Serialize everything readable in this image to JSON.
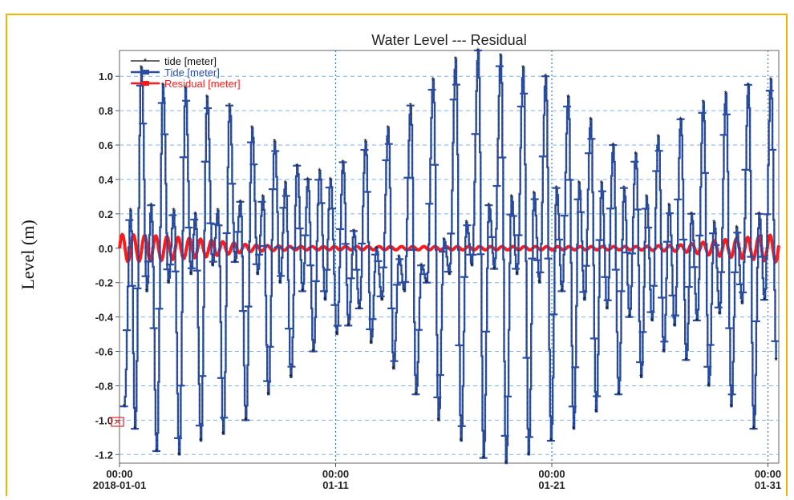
{
  "frame_color": "#f5b300",
  "chart_data": {
    "type": "line",
    "title": "Water Level --- Residual",
    "ylabel": "Level (m)",
    "xlabel": "",
    "ylim": [
      -1.25,
      1.15
    ],
    "y_ticks": [
      1.0,
      0.8,
      0.6,
      0.4,
      0.2,
      0.0,
      -0.2,
      -0.4,
      -0.6,
      -0.8,
      -1.0,
      -1.2
    ],
    "y_tick_labels": [
      "1.0",
      "0.8",
      "0.6",
      "0.4",
      "0.2",
      "0.0",
      "-0.2",
      "-0.4",
      "-0.6",
      "-0.8",
      "-1.0",
      "-1.2"
    ],
    "xlim": [
      "2018-01-01T00:00",
      "2018-01-31T12:00"
    ],
    "x_ticks": [
      {
        "date": "2018-01-01T00:00",
        "line1": "00:00",
        "line2": "2018-01-01"
      },
      {
        "date": "2018-01-11T00:00",
        "line1": "00:00",
        "line2": "01-11"
      },
      {
        "date": "2018-01-21T00:00",
        "line1": "00:00",
        "line2": "01-21"
      },
      {
        "date": "2018-01-31T00:00",
        "line1": "00:00",
        "line2": "01-31"
      }
    ],
    "grid": true,
    "legend_position": "top-left",
    "series": [
      {
        "name": "tide [meter]",
        "color": "#111111",
        "marker": "asterisk"
      },
      {
        "name": "Tide [meter]",
        "color": "#2b4ea3",
        "marker": "dash"
      },
      {
        "name": "Residual [meter]",
        "color": "#ff1a1a",
        "marker": "dash"
      }
    ],
    "tide_extremes": [
      {
        "date": "2018-01-01T05:00",
        "value": -0.92
      },
      {
        "date": "2018-01-01T12:00",
        "value": 0.22
      },
      {
        "date": "2018-01-01T17:00",
        "value": -1.05
      },
      {
        "date": "2018-01-02T00:00",
        "value": 1.05
      },
      {
        "date": "2018-01-02T06:00",
        "value": -0.25
      },
      {
        "date": "2018-01-02T11:00",
        "value": 0.25
      },
      {
        "date": "2018-01-02T17:00",
        "value": -1.18
      },
      {
        "date": "2018-01-03T00:00",
        "value": 0.95
      },
      {
        "date": "2018-01-03T06:00",
        "value": -0.2
      },
      {
        "date": "2018-01-03T12:00",
        "value": 0.22
      },
      {
        "date": "2018-01-03T18:00",
        "value": -1.2
      },
      {
        "date": "2018-01-04T01:00",
        "value": 0.93
      },
      {
        "date": "2018-01-04T07:00",
        "value": -0.15
      },
      {
        "date": "2018-01-04T12:00",
        "value": 0.2
      },
      {
        "date": "2018-01-04T18:00",
        "value": -1.12
      },
      {
        "date": "2018-01-05T01:00",
        "value": 0.88
      },
      {
        "date": "2018-01-05T07:00",
        "value": -0.1
      },
      {
        "date": "2018-01-05T13:00",
        "value": 0.22
      },
      {
        "date": "2018-01-05T19:00",
        "value": -1.08
      },
      {
        "date": "2018-01-06T02:00",
        "value": 0.83
      },
      {
        "date": "2018-01-06T08:00",
        "value": -0.08
      },
      {
        "date": "2018-01-06T14:00",
        "value": 0.27
      },
      {
        "date": "2018-01-06T20:00",
        "value": -1.0
      },
      {
        "date": "2018-01-07T03:00",
        "value": 0.7
      },
      {
        "date": "2018-01-07T09:00",
        "value": -0.15
      },
      {
        "date": "2018-01-07T15:00",
        "value": 0.3
      },
      {
        "date": "2018-01-07T21:00",
        "value": -0.85
      },
      {
        "date": "2018-01-08T04:00",
        "value": 0.62
      },
      {
        "date": "2018-01-08T10:00",
        "value": -0.2
      },
      {
        "date": "2018-01-08T16:00",
        "value": 0.38
      },
      {
        "date": "2018-01-08T22:00",
        "value": -0.75
      },
      {
        "date": "2018-01-09T05:00",
        "value": 0.48
      },
      {
        "date": "2018-01-09T11:00",
        "value": -0.25
      },
      {
        "date": "2018-01-09T17:00",
        "value": 0.4
      },
      {
        "date": "2018-01-09T23:00",
        "value": -0.6
      },
      {
        "date": "2018-01-10T06:00",
        "value": 0.45
      },
      {
        "date": "2018-01-10T12:00",
        "value": -0.3
      },
      {
        "date": "2018-01-10T18:00",
        "value": 0.4
      },
      {
        "date": "2018-01-11T01:00",
        "value": -0.5
      },
      {
        "date": "2018-01-11T08:00",
        "value": 0.5
      },
      {
        "date": "2018-01-11T14:00",
        "value": -0.45
      },
      {
        "date": "2018-01-11T20:00",
        "value": 0.1
      },
      {
        "date": "2018-01-12T02:00",
        "value": -0.35
      },
      {
        "date": "2018-01-12T09:00",
        "value": 0.62
      },
      {
        "date": "2018-01-12T15:00",
        "value": -0.55
      },
      {
        "date": "2018-01-12T21:00",
        "value": 0.0
      },
      {
        "date": "2018-01-13T03:00",
        "value": -0.3
      },
      {
        "date": "2018-01-13T10:00",
        "value": 0.7
      },
      {
        "date": "2018-01-13T16:00",
        "value": -0.7
      },
      {
        "date": "2018-01-13T22:00",
        "value": -0.05
      },
      {
        "date": "2018-01-14T04:00",
        "value": -0.25
      },
      {
        "date": "2018-01-14T11:00",
        "value": 0.83
      },
      {
        "date": "2018-01-14T17:00",
        "value": -0.85
      },
      {
        "date": "2018-01-14T23:00",
        "value": -0.1
      },
      {
        "date": "2018-01-15T05:00",
        "value": -0.2
      },
      {
        "date": "2018-01-15T12:00",
        "value": 0.98
      },
      {
        "date": "2018-01-15T18:00",
        "value": -1.0
      },
      {
        "date": "2018-01-16T00:00",
        "value": 0.05
      },
      {
        "date": "2018-01-16T06:00",
        "value": -0.15
      },
      {
        "date": "2018-01-16T13:00",
        "value": 1.1
      },
      {
        "date": "2018-01-16T19:00",
        "value": -1.12
      },
      {
        "date": "2018-01-17T01:00",
        "value": 0.15
      },
      {
        "date": "2018-01-17T07:00",
        "value": -0.1
      },
      {
        "date": "2018-01-17T14:00",
        "value": 1.15
      },
      {
        "date": "2018-01-17T20:00",
        "value": -1.22
      },
      {
        "date": "2018-01-18T02:00",
        "value": 0.25
      },
      {
        "date": "2018-01-18T08:00",
        "value": -0.12
      },
      {
        "date": "2018-01-18T15:00",
        "value": 1.12
      },
      {
        "date": "2018-01-18T21:00",
        "value": -1.25
      },
      {
        "date": "2018-01-19T03:00",
        "value": 0.3
      },
      {
        "date": "2018-01-19T09:00",
        "value": -0.15
      },
      {
        "date": "2018-01-19T16:00",
        "value": 1.05
      },
      {
        "date": "2018-01-19T22:00",
        "value": -1.2
      },
      {
        "date": "2018-01-20T04:00",
        "value": 0.32
      },
      {
        "date": "2018-01-20T10:00",
        "value": -0.2
      },
      {
        "date": "2018-01-20T17:00",
        "value": 1.0
      },
      {
        "date": "2018-01-20T23:00",
        "value": -1.12
      },
      {
        "date": "2018-01-21T05:00",
        "value": 0.35
      },
      {
        "date": "2018-01-21T11:00",
        "value": -0.25
      },
      {
        "date": "2018-01-21T18:00",
        "value": 0.88
      },
      {
        "date": "2018-01-22T00:00",
        "value": -1.05
      },
      {
        "date": "2018-01-22T06:00",
        "value": 0.38
      },
      {
        "date": "2018-01-22T12:00",
        "value": -0.3
      },
      {
        "date": "2018-01-22T19:00",
        "value": 0.75
      },
      {
        "date": "2018-01-23T01:00",
        "value": -0.95
      },
      {
        "date": "2018-01-23T07:00",
        "value": 0.38
      },
      {
        "date": "2018-01-23T13:00",
        "value": -0.35
      },
      {
        "date": "2018-01-23T20:00",
        "value": 0.6
      },
      {
        "date": "2018-01-24T02:00",
        "value": -0.85
      },
      {
        "date": "2018-01-24T08:00",
        "value": 0.35
      },
      {
        "date": "2018-01-24T14:00",
        "value": -0.4
      },
      {
        "date": "2018-01-24T21:00",
        "value": 0.55
      },
      {
        "date": "2018-01-25T03:00",
        "value": -0.75
      },
      {
        "date": "2018-01-25T09:00",
        "value": 0.3
      },
      {
        "date": "2018-01-25T15:00",
        "value": -0.42
      },
      {
        "date": "2018-01-25T22:00",
        "value": 0.65
      },
      {
        "date": "2018-01-26T04:00",
        "value": -0.6
      },
      {
        "date": "2018-01-26T10:00",
        "value": 0.25
      },
      {
        "date": "2018-01-26T16:00",
        "value": -0.45
      },
      {
        "date": "2018-01-26T23:00",
        "value": 0.75
      },
      {
        "date": "2018-01-27T05:00",
        "value": -0.65
      },
      {
        "date": "2018-01-27T11:00",
        "value": 0.2
      },
      {
        "date": "2018-01-27T17:00",
        "value": -0.42
      },
      {
        "date": "2018-01-28T00:00",
        "value": 0.85
      },
      {
        "date": "2018-01-28T06:00",
        "value": -0.8
      },
      {
        "date": "2018-01-28T12:00",
        "value": 0.15
      },
      {
        "date": "2018-01-28T18:00",
        "value": -0.38
      },
      {
        "date": "2018-01-29T01:00",
        "value": 0.9
      },
      {
        "date": "2018-01-29T07:00",
        "value": -0.92
      },
      {
        "date": "2018-01-29T13:00",
        "value": 0.12
      },
      {
        "date": "2018-01-29T19:00",
        "value": -0.32
      },
      {
        "date": "2018-01-30T02:00",
        "value": 0.95
      },
      {
        "date": "2018-01-30T08:00",
        "value": -1.05
      },
      {
        "date": "2018-01-30T14:00",
        "value": 0.2
      },
      {
        "date": "2018-01-30T20:00",
        "value": -0.3
      },
      {
        "date": "2018-01-31T03:00",
        "value": 0.98
      },
      {
        "date": "2018-01-31T09:00",
        "value": -0.65
      }
    ],
    "residual_envelope": [
      {
        "date": "2018-01-01T00:00",
        "amplitude": 0.08
      },
      {
        "date": "2018-01-03T00:00",
        "amplitude": 0.07
      },
      {
        "date": "2018-01-05T00:00",
        "amplitude": 0.05
      },
      {
        "date": "2018-01-07T00:00",
        "amplitude": 0.02
      },
      {
        "date": "2018-01-09T00:00",
        "amplitude": 0.01
      },
      {
        "date": "2018-01-25T00:00",
        "amplitude": 0.01
      },
      {
        "date": "2018-01-27T00:00",
        "amplitude": 0.02
      },
      {
        "date": "2018-01-29T00:00",
        "amplitude": 0.05
      },
      {
        "date": "2018-01-31T12:00",
        "amplitude": 0.08
      }
    ]
  }
}
